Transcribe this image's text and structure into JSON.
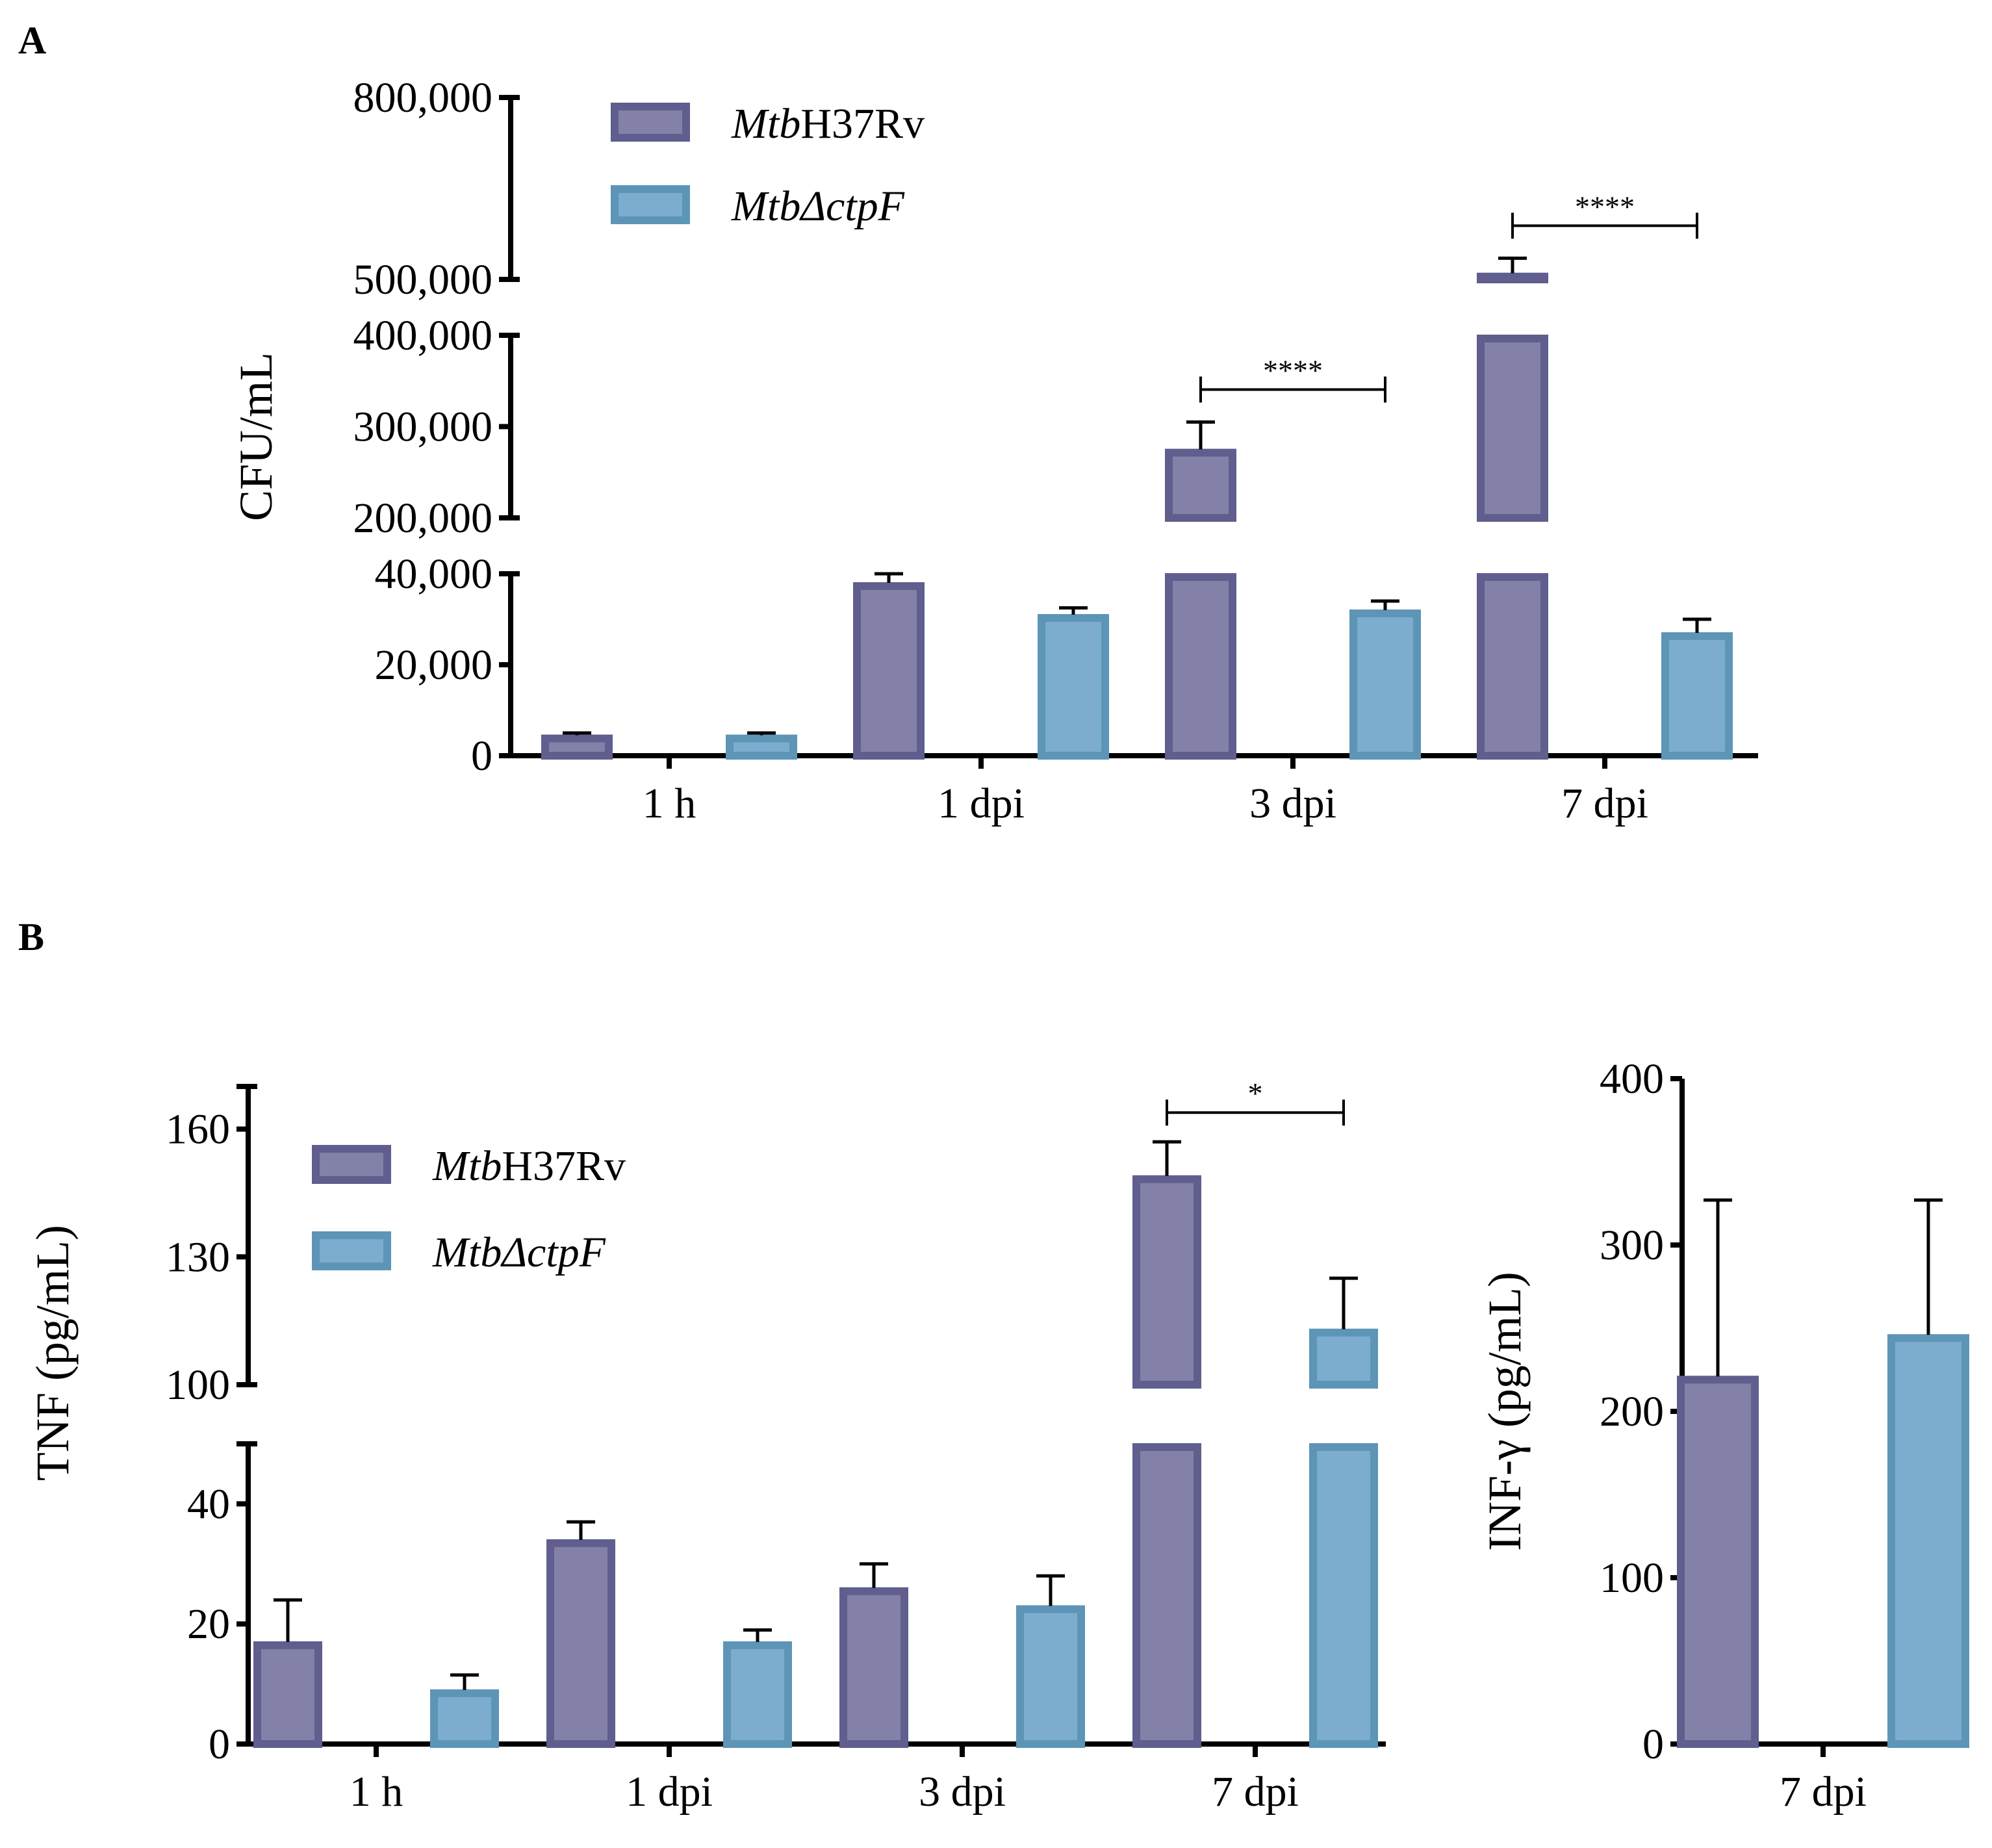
{
  "colors": {
    "h37rv_fill": "#8381A8",
    "h37rv_edge": "#5F5E8E",
    "ctpf_fill": "#7CADCF",
    "ctpf_edge": "#5D95B7"
  },
  "panel_labels": {
    "a": "A",
    "b": "B"
  },
  "legend": [
    {
      "italic": "Mtb",
      "rest": "H37Rv",
      "color_key": "h37rv"
    },
    {
      "italic": "MtbΔctpF",
      "rest": "",
      "color_key": "ctpf"
    }
  ],
  "chart_data": [
    {
      "id": "A",
      "type": "bar",
      "ylabel": "CFU/mL",
      "xlabel": "",
      "categories": [
        "1 h",
        "1 dpi",
        "3 dpi",
        "7 dpi"
      ],
      "series": [
        {
          "name": "MtbH37Rv",
          "values": [
            4500,
            38000,
            275000,
            510000
          ],
          "errors": [
            500,
            2000,
            30000,
            25000
          ]
        },
        {
          "name": "MtbΔctpF",
          "values": [
            4500,
            31000,
            32000,
            27000
          ],
          "errors": [
            500,
            1500,
            2000,
            3000
          ]
        }
      ],
      "y_segments": [
        {
          "range": [
            0,
            40000
          ],
          "ticks": [
            0,
            20000,
            40000
          ]
        },
        {
          "range": [
            200000,
            400000
          ],
          "ticks": [
            200000,
            300000,
            400000
          ]
        },
        {
          "range": [
            500000,
            800000
          ],
          "ticks": [
            500000,
            800000
          ]
        }
      ],
      "tick_labels": {
        "0": "0",
        "20000": "20,000",
        "40000": "40,000",
        "200000": "200,000",
        "300000": "300,000",
        "400000": "400,000",
        "500000": "500,000",
        "800000": "800,000"
      },
      "significance": [
        {
          "category": "3 dpi",
          "label": "****"
        },
        {
          "category": "7 dpi",
          "label": "****"
        }
      ]
    },
    {
      "id": "B-TNF",
      "type": "bar",
      "ylabel": "TNF (pg/mL)",
      "xlabel": "",
      "categories": [
        "1 h",
        "1 dpi",
        "3 dpi",
        "7 dpi"
      ],
      "series": [
        {
          "name": "MtbH37Rv",
          "values": [
            17,
            34,
            26,
            149
          ],
          "errors": [
            7,
            3,
            4,
            8
          ]
        },
        {
          "name": "MtbΔctpF",
          "values": [
            9,
            17,
            23,
            113
          ],
          "errors": [
            2.5,
            2,
            5,
            12
          ]
        }
      ],
      "y_segments": [
        {
          "range": [
            0,
            50
          ],
          "ticks": [
            0,
            20,
            40
          ]
        },
        {
          "range": [
            100,
            170
          ],
          "ticks": [
            100,
            130,
            160
          ]
        }
      ],
      "tick_labels": {
        "0": "0",
        "20": "20",
        "40": "40",
        "100": "100",
        "130": "130",
        "160": "160"
      },
      "significance": [
        {
          "category": "7 dpi",
          "label": "*"
        }
      ]
    },
    {
      "id": "B-INF",
      "type": "bar",
      "ylabel": "INF-γ (pg/mL)",
      "xlabel": "",
      "categories": [
        "7 dpi"
      ],
      "series": [
        {
          "name": "MtbH37Rv",
          "values": [
            221
          ],
          "errors": [
            106
          ]
        },
        {
          "name": "MtbΔctpF",
          "values": [
            246
          ],
          "errors": [
            81
          ]
        }
      ],
      "ylim": [
        0,
        400
      ],
      "ticks": [
        0,
        100,
        200,
        300,
        400
      ],
      "tick_labels": {
        "0": "0",
        "100": "100",
        "200": "200",
        "300": "300",
        "400": "400"
      },
      "significance": []
    }
  ]
}
